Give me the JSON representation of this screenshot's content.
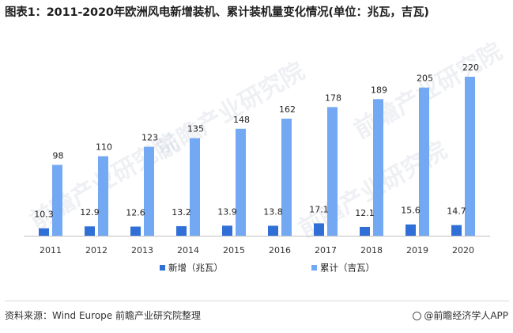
{
  "title": "图表1：2011-2020年欧洲风电新增装机、累计装机量变化情况(单位：兆瓦，吉瓦)",
  "source": "资料来源：Wind Europe 前瞻产业研究院整理",
  "brand": "@前瞻经济学人APP",
  "watermark": "前瞻产业研究院",
  "colors": {
    "new": "#2f6fd6",
    "cum": "#73a8f2",
    "axis": "#bfbfbf"
  },
  "chart_data": {
    "type": "bar",
    "title": "图表1：2011-2020年欧洲风电新增装机、累计装机量变化情况(单位：兆瓦，吉瓦)",
    "categories": [
      "2011",
      "2012",
      "2013",
      "2014",
      "2015",
      "2016",
      "2017",
      "2018",
      "2019",
      "2020"
    ],
    "series": [
      {
        "name": "新增（兆瓦）",
        "values": [
          10.3,
          12.9,
          12.6,
          13.2,
          13.9,
          13.8,
          17.1,
          12.1,
          15.6,
          14.7
        ]
      },
      {
        "name": "累计（吉瓦）",
        "values": [
          98,
          110,
          123,
          135,
          148,
          162,
          178,
          189,
          205,
          220
        ]
      }
    ],
    "ylim": [
      0,
      220
    ],
    "grid": false,
    "legend_position": "bottom"
  }
}
